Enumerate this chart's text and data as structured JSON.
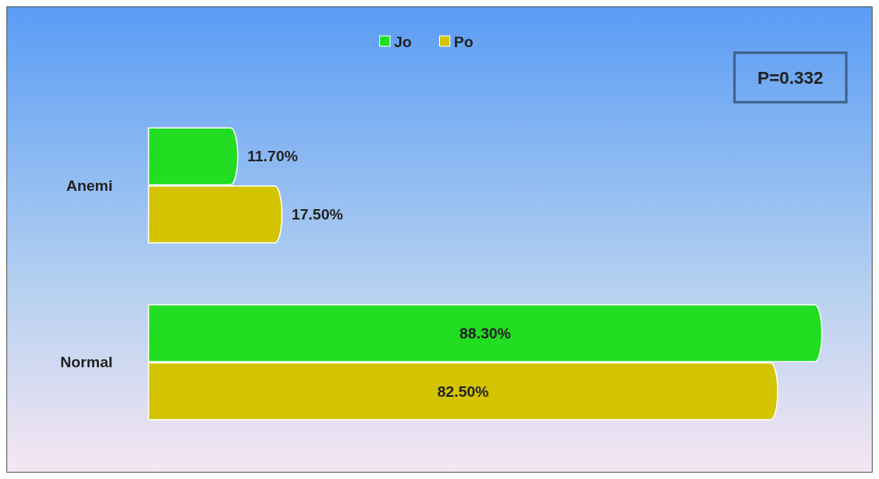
{
  "chart_data": {
    "type": "bar",
    "orientation": "horizontal",
    "categories": [
      "Anemi",
      "Normal"
    ],
    "series": [
      {
        "name": "Jo",
        "color": "#22dd22",
        "values": [
          11.7,
          88.3
        ],
        "value_labels": [
          "11.70%",
          "88.30%"
        ]
      },
      {
        "name": "Po",
        "color": "#d4c400",
        "values": [
          17.5,
          82.5
        ],
        "value_labels": [
          "17.50%",
          "82.50%"
        ]
      }
    ],
    "legend": "top",
    "annotations": [
      "P=0.332"
    ]
  }
}
